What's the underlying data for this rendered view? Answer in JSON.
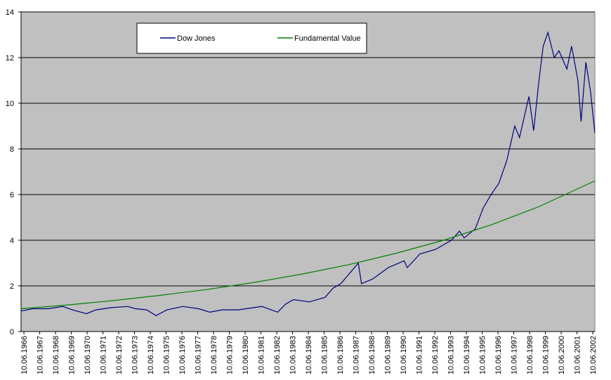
{
  "chart_data": {
    "type": "line",
    "xlim": [
      1966.26,
      2002.57
    ],
    "ylim": [
      0,
      14
    ],
    "yticks": [
      0,
      2,
      4,
      6,
      8,
      10,
      12,
      14
    ],
    "xticks": [
      {
        "value": 1966.44,
        "label": "10.06.1966"
      },
      {
        "value": 1967.44,
        "label": "10.06.1967"
      },
      {
        "value": 1968.44,
        "label": "10.06.1968"
      },
      {
        "value": 1969.44,
        "label": "10.06.1969"
      },
      {
        "value": 1970.44,
        "label": "10.06.1970"
      },
      {
        "value": 1971.44,
        "label": "10.06.1971"
      },
      {
        "value": 1972.44,
        "label": "10.06.1972"
      },
      {
        "value": 1973.44,
        "label": "10.06.1973"
      },
      {
        "value": 1974.44,
        "label": "10.06.1974"
      },
      {
        "value": 1975.44,
        "label": "10.06.1975"
      },
      {
        "value": 1976.44,
        "label": "10.06.1976"
      },
      {
        "value": 1977.44,
        "label": "10.06.1977"
      },
      {
        "value": 1978.44,
        "label": "10.06.1978"
      },
      {
        "value": 1979.44,
        "label": "10.06.1979"
      },
      {
        "value": 1980.44,
        "label": "10.06.1980"
      },
      {
        "value": 1981.44,
        "label": "10.06.1981"
      },
      {
        "value": 1982.44,
        "label": "10.06.1982"
      },
      {
        "value": 1983.44,
        "label": "10.06.1983"
      },
      {
        "value": 1984.44,
        "label": "10.06.1984"
      },
      {
        "value": 1985.44,
        "label": "10.06.1985"
      },
      {
        "value": 1986.44,
        "label": "10.06.1986"
      },
      {
        "value": 1987.44,
        "label": "10.06.1987"
      },
      {
        "value": 1988.44,
        "label": "10.06.1988"
      },
      {
        "value": 1989.44,
        "label": "10.06.1989"
      },
      {
        "value": 1990.44,
        "label": "10.06.1990"
      },
      {
        "value": 1991.44,
        "label": "10.06.1991"
      },
      {
        "value": 1992.44,
        "label": "10.06.1992"
      },
      {
        "value": 1993.44,
        "label": "10.06.1993"
      },
      {
        "value": 1994.44,
        "label": "10.06.1994"
      },
      {
        "value": 1995.44,
        "label": "10.06.1995"
      },
      {
        "value": 1996.44,
        "label": "10.06.1996"
      },
      {
        "value": 1997.44,
        "label": "10.06.1997"
      },
      {
        "value": 1998.44,
        "label": "10.06.1998"
      },
      {
        "value": 1999.44,
        "label": "10.06.1999"
      },
      {
        "value": 2000.44,
        "label": "10.06.2000"
      },
      {
        "value": 2001.44,
        "label": "10.06.2001"
      },
      {
        "value": 2002.44,
        "label": "10.06.2002"
      }
    ],
    "grid": true,
    "series": [
      {
        "name": "Dow Jones",
        "color": "#000080",
        "x": [
          1966.26,
          1967,
          1968,
          1968.9,
          1969.5,
          1970.4,
          1971,
          1972,
          1973,
          1973.5,
          1974.2,
          1974.8,
          1975.5,
          1976.5,
          1977.5,
          1978.2,
          1979,
          1980,
          1981,
          1981.5,
          1982.5,
          1983,
          1983.5,
          1984.5,
          1985.5,
          1986,
          1986.5,
          1987.6,
          1987.8,
          1988.5,
          1989.5,
          1990.5,
          1990.7,
          1991.5,
          1992.5,
          1993.5,
          1994,
          1994.3,
          1995,
          1995.5,
          1996,
          1996.5,
          1997,
          1997.5,
          1997.8,
          1998.4,
          1998.7,
          1999,
          1999.3,
          1999.6,
          2000,
          2000.3,
          2000.8,
          2001.1,
          2001.5,
          2001.7,
          2002,
          2002.3,
          2002.57
        ],
        "values": [
          0.9,
          1.0,
          1.0,
          1.1,
          0.95,
          0.78,
          0.95,
          1.05,
          1.1,
          1.0,
          0.95,
          0.7,
          0.95,
          1.1,
          1.0,
          0.85,
          0.95,
          0.95,
          1.05,
          1.1,
          0.85,
          1.2,
          1.4,
          1.3,
          1.5,
          1.9,
          2.1,
          3.0,
          2.1,
          2.3,
          2.8,
          3.1,
          2.8,
          3.4,
          3.6,
          4.0,
          4.4,
          4.1,
          4.5,
          5.4,
          6.0,
          6.5,
          7.5,
          9.0,
          8.5,
          10.3,
          8.8,
          10.8,
          12.5,
          13.1,
          12.0,
          12.3,
          11.5,
          12.5,
          11.0,
          9.2,
          11.8,
          10.5,
          8.7
        ]
      },
      {
        "name": "Fundamental Value",
        "color": "#008000",
        "x": [
          1966.26,
          1969,
          1972,
          1975,
          1978,
          1981,
          1984,
          1987,
          1990,
          1993,
          1996,
          1999,
          2002.57
        ],
        "values": [
          1.0,
          1.15,
          1.35,
          1.58,
          1.84,
          2.15,
          2.51,
          2.93,
          3.43,
          4.0,
          4.67,
          5.46,
          6.6
        ]
      }
    ]
  }
}
